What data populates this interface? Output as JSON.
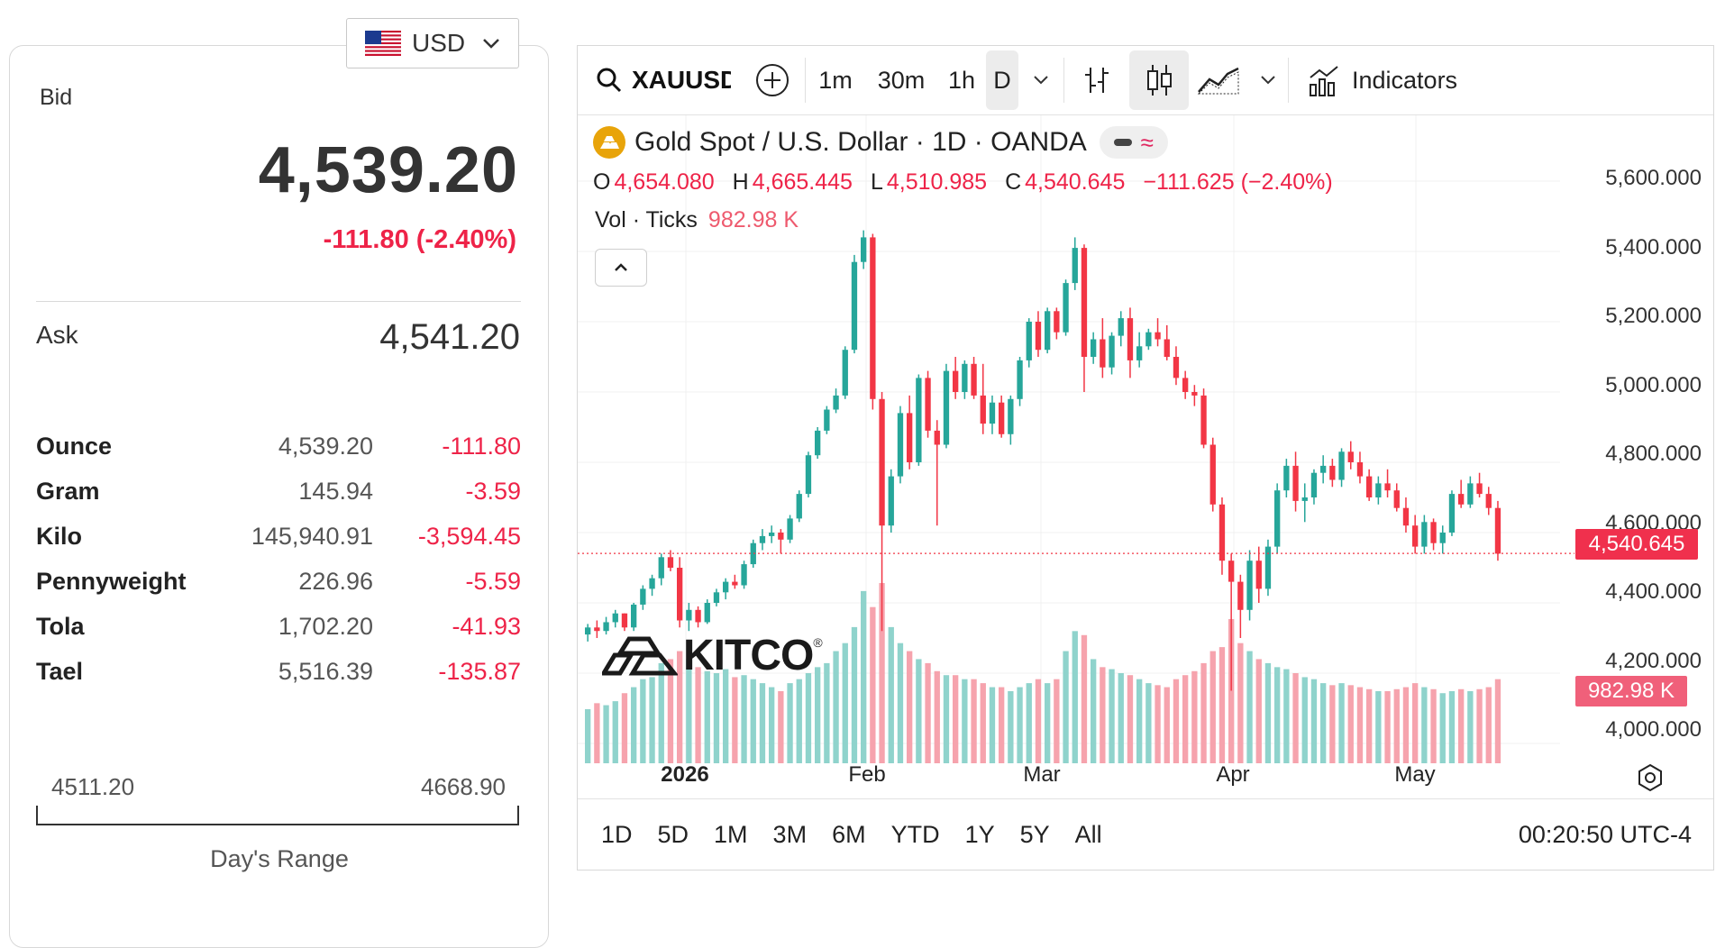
{
  "currency": {
    "code": "USD",
    "flag_icon": "us-flag-icon"
  },
  "quote": {
    "bid_label": "Bid",
    "bid_price": "4,539.20",
    "bid_change": "-111.80 (-2.40%)",
    "ask_label": "Ask",
    "ask_price": "4,541.20"
  },
  "units": [
    {
      "name": "Ounce",
      "value": "4,539.20",
      "change": "-111.80"
    },
    {
      "name": "Gram",
      "value": "145.94",
      "change": "-3.59"
    },
    {
      "name": "Kilo",
      "value": "145,940.91",
      "change": "-3,594.45"
    },
    {
      "name": "Pennyweight",
      "value": "226.96",
      "change": "-5.59"
    },
    {
      "name": "Tola",
      "value": "1,702.20",
      "change": "-41.93"
    },
    {
      "name": "Tael",
      "value": "5,516.39",
      "change": "-135.87"
    }
  ],
  "day_range": {
    "low": "4511.20",
    "high": "4668.90",
    "label": "Day's Range"
  },
  "toolbar": {
    "symbol": "XAUUSD",
    "intervals": [
      "1m",
      "30m",
      "1h",
      "D"
    ],
    "indicators_label": "Indicators"
  },
  "chart_legend": {
    "title": "Gold Spot / U.S. Dollar · 1D · OANDA",
    "o_label": "O",
    "o": "4,654.080",
    "h_label": "H",
    "h": "4,665.445",
    "l_label": "L",
    "l": "4,510.985",
    "c_label": "C",
    "c": "4,540.645",
    "change": "−111.625 (−2.40%)",
    "vol_label": "Vol · Ticks",
    "vol": "982.98 K"
  },
  "price_axis": [
    "5,600.000",
    "5,400.000",
    "5,200.000",
    "5,000.000",
    "4,800.000",
    "4,600.000",
    "4,400.000",
    "4,200.000",
    "4,000.000"
  ],
  "current_price_tag": "4,540.645",
  "volume_tag": "982.98 K",
  "time_axis": [
    {
      "label": "2026",
      "bold": true
    },
    {
      "label": "Feb",
      "bold": false
    },
    {
      "label": "Mar",
      "bold": false
    },
    {
      "label": "Apr",
      "bold": false
    },
    {
      "label": "May",
      "bold": false
    }
  ],
  "watermark": "KITCO",
  "range_buttons": [
    "1D",
    "5D",
    "1M",
    "3M",
    "6M",
    "YTD",
    "1Y",
    "5Y",
    "All"
  ],
  "clock": "00:20:50 UTC-4",
  "colors": {
    "up": "#26a69a",
    "down": "#f23645",
    "up_vol": "#8fd3cc",
    "down_vol": "#f6a3ad",
    "accent_red": "#ee2348"
  },
  "chart_data": {
    "type": "candlestick",
    "x_label_ticks": [
      "2026",
      "Feb",
      "Mar",
      "Apr",
      "May"
    ],
    "ylim": [
      3950,
      5680
    ],
    "last_price": 4540.645,
    "candles": [
      [
        4310,
        4340,
        4290,
        4330,
        270
      ],
      [
        4330,
        4350,
        4300,
        4320,
        300
      ],
      [
        4320,
        4360,
        4310,
        4345,
        290
      ],
      [
        4345,
        4380,
        4330,
        4370,
        310
      ],
      [
        4370,
        4370,
        4320,
        4330,
        350
      ],
      [
        4330,
        4400,
        4320,
        4395,
        380
      ],
      [
        4395,
        4450,
        4380,
        4440,
        420
      ],
      [
        4440,
        4480,
        4420,
        4470,
        430
      ],
      [
        4470,
        4540,
        4450,
        4530,
        500
      ],
      [
        4530,
        4550,
        4490,
        4500,
        520
      ],
      [
        4500,
        4530,
        4330,
        4350,
        560
      ],
      [
        4350,
        4400,
        4320,
        4380,
        520
      ],
      [
        4380,
        4390,
        4330,
        4345,
        480
      ],
      [
        4345,
        4410,
        4340,
        4400,
        460
      ],
      [
        4400,
        4440,
        4390,
        4430,
        450
      ],
      [
        4430,
        4470,
        4410,
        4460,
        470
      ],
      [
        4460,
        4480,
        4440,
        4450,
        430
      ],
      [
        4450,
        4520,
        4440,
        4510,
        440
      ],
      [
        4510,
        4580,
        4500,
        4570,
        420
      ],
      [
        4570,
        4610,
        4550,
        4590,
        400
      ],
      [
        4590,
        4620,
        4570,
        4600,
        380
      ],
      [
        4600,
        4610,
        4540,
        4580,
        360
      ],
      [
        4580,
        4650,
        4570,
        4640,
        400
      ],
      [
        4640,
        4720,
        4630,
        4710,
        420
      ],
      [
        4710,
        4830,
        4700,
        4820,
        450
      ],
      [
        4820,
        4900,
        4810,
        4890,
        480
      ],
      [
        4890,
        4960,
        4880,
        4950,
        500
      ],
      [
        4950,
        5010,
        4940,
        4990,
        560
      ],
      [
        4990,
        5130,
        4980,
        5120,
        600
      ],
      [
        5120,
        5390,
        5110,
        5370,
        680
      ],
      [
        5370,
        5460,
        5350,
        5440,
        860
      ],
      [
        5440,
        5450,
        4950,
        4980,
        780
      ],
      [
        4980,
        5000,
        4320,
        4620,
        900
      ],
      [
        4620,
        4780,
        4600,
        4760,
        680
      ],
      [
        4760,
        4960,
        4740,
        4940,
        600
      ],
      [
        4940,
        4990,
        4780,
        4800,
        560
      ],
      [
        4800,
        5050,
        4790,
        5040,
        520
      ],
      [
        5040,
        5060,
        4870,
        4890,
        500
      ],
      [
        4890,
        4920,
        4620,
        4850,
        460
      ],
      [
        4850,
        5080,
        4840,
        5060,
        440
      ],
      [
        5060,
        5100,
        4980,
        5000,
        440
      ],
      [
        5000,
        5090,
        4980,
        5080,
        420
      ],
      [
        5080,
        5100,
        4980,
        4990,
        420
      ],
      [
        4990,
        5080,
        4880,
        4910,
        400
      ],
      [
        4910,
        4990,
        4880,
        4970,
        380
      ],
      [
        4970,
        4990,
        4870,
        4880,
        380
      ],
      [
        4880,
        4990,
        4850,
        4980,
        360
      ],
      [
        4980,
        5100,
        4960,
        5090,
        380
      ],
      [
        5090,
        5210,
        5070,
        5200,
        400
      ],
      [
        5200,
        5230,
        5100,
        5120,
        420
      ],
      [
        5120,
        5240,
        5110,
        5230,
        400
      ],
      [
        5230,
        5240,
        5150,
        5170,
        420
      ],
      [
        5170,
        5320,
        5160,
        5310,
        560
      ],
      [
        5310,
        5440,
        5290,
        5410,
        660
      ],
      [
        5410,
        5420,
        5000,
        5100,
        640
      ],
      [
        5100,
        5170,
        5080,
        5150,
        520
      ],
      [
        5150,
        5210,
        5040,
        5070,
        480
      ],
      [
        5070,
        5170,
        5050,
        5160,
        470
      ],
      [
        5160,
        5230,
        5130,
        5210,
        450
      ],
      [
        5210,
        5240,
        5040,
        5090,
        440
      ],
      [
        5090,
        5170,
        5070,
        5130,
        420
      ],
      [
        5130,
        5180,
        5120,
        5170,
        400
      ],
      [
        5170,
        5210,
        5130,
        5150,
        390
      ],
      [
        5150,
        5190,
        5090,
        5100,
        380
      ],
      [
        5100,
        5130,
        5020,
        5040,
        420
      ],
      [
        5040,
        5060,
        4980,
        5000,
        440
      ],
      [
        5000,
        5020,
        4960,
        4990,
        460
      ],
      [
        4990,
        5010,
        4840,
        4850,
        500
      ],
      [
        4850,
        4870,
        4660,
        4680,
        560
      ],
      [
        4680,
        4700,
        4480,
        4520,
        580
      ],
      [
        4520,
        4540,
        4150,
        4460,
        720
      ],
      [
        4460,
        4480,
        4300,
        4380,
        600
      ],
      [
        4380,
        4550,
        4350,
        4520,
        560
      ],
      [
        4520,
        4560,
        4400,
        4440,
        520
      ],
      [
        4440,
        4580,
        4420,
        4560,
        500
      ],
      [
        4560,
        4740,
        4540,
        4720,
        480
      ],
      [
        4720,
        4810,
        4700,
        4790,
        470
      ],
      [
        4790,
        4830,
        4660,
        4690,
        450
      ],
      [
        4690,
        4740,
        4630,
        4700,
        430
      ],
      [
        4700,
        4780,
        4680,
        4770,
        420
      ],
      [
        4770,
        4820,
        4740,
        4790,
        400
      ],
      [
        4790,
        4810,
        4730,
        4750,
        390
      ],
      [
        4750,
        4840,
        4730,
        4830,
        400
      ],
      [
        4830,
        4860,
        4780,
        4800,
        390
      ],
      [
        4800,
        4830,
        4740,
        4760,
        380
      ],
      [
        4760,
        4780,
        4690,
        4700,
        370
      ],
      [
        4700,
        4760,
        4680,
        4740,
        360
      ],
      [
        4740,
        4780,
        4700,
        4720,
        360
      ],
      [
        4720,
        4740,
        4660,
        4670,
        370
      ],
      [
        4670,
        4700,
        4600,
        4620,
        380
      ],
      [
        4620,
        4650,
        4540,
        4560,
        400
      ],
      [
        4560,
        4650,
        4540,
        4630,
        380
      ],
      [
        4630,
        4640,
        4550,
        4570,
        370
      ],
      [
        4570,
        4620,
        4540,
        4600,
        350
      ],
      [
        4600,
        4720,
        4590,
        4710,
        360
      ],
      [
        4710,
        4750,
        4670,
        4680,
        370
      ],
      [
        4680,
        4760,
        4670,
        4740,
        360
      ],
      [
        4740,
        4770,
        4700,
        4710,
        370
      ],
      [
        4710,
        4730,
        4650,
        4670,
        380
      ],
      [
        4670,
        4690,
        4520,
        4540,
        420
      ]
    ]
  }
}
